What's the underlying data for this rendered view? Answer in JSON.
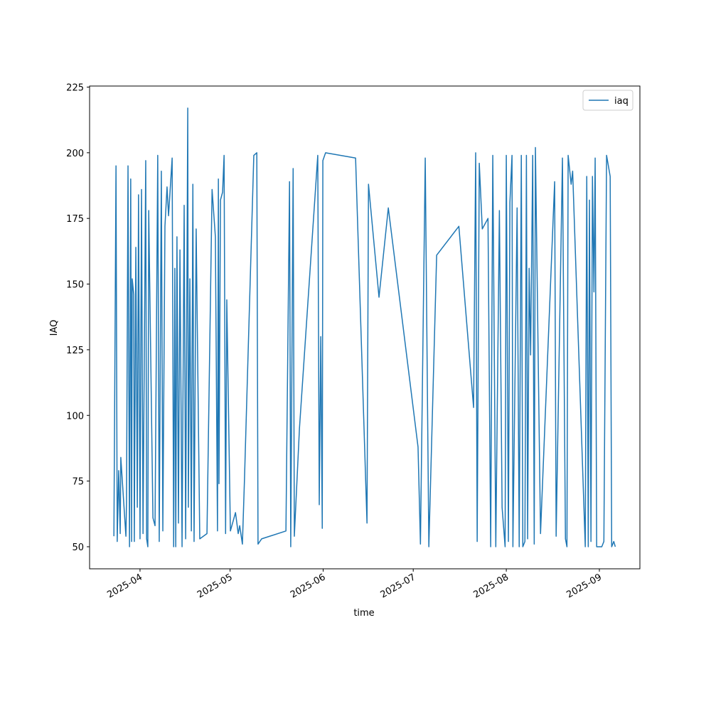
{
  "chart_data": {
    "type": "line",
    "xlabel": "time",
    "ylabel": "IAQ",
    "x": [
      20170.3,
      20171.0,
      20171.4,
      20171.9,
      20172.4,
      20172.6,
      20174.3,
      20174.5,
      20175.0,
      20175.5,
      20175.9,
      20176.2,
      20176.4,
      20176.9,
      20177.1,
      20177.6,
      20178.1,
      20178.5,
      20179.0,
      20179.5,
      20180.0,
      20180.9,
      20181.2,
      20181.6,
      20181.9,
      20183.3,
      20184.0,
      20184.9,
      20185.4,
      20186.1,
      20186.6,
      20187.3,
      20188.0,
      20188.5,
      20189.7,
      20190.2,
      20190.6,
      20190.9,
      20191.3,
      20191.8,
      20192.3,
      20193.0,
      20193.7,
      20194.2,
      20194.9,
      20195.1,
      20195.6,
      20196.1,
      20196.6,
      20197.0,
      20197.7,
      20198.9,
      20201.3,
      20203.0,
      20204.1,
      20204.8,
      20205.1,
      20205.3,
      20205.8,
      20206.5,
      20207.0,
      20207.5,
      20207.9,
      20209.1,
      20210.8,
      20211.7,
      20212.2,
      20213.1,
      20213.8,
      20216.9,
      20217.9,
      20218.3,
      20219.5,
      20227.6,
      20228.8,
      20229.2,
      20230.0,
      20230.4,
      20232.1,
      20238.2,
      20238.7,
      20239.2,
      20239.7,
      20239.9,
      20240.8,
      20250.8,
      20254.6,
      20255.1,
      20258.6,
      20261.7,
      20271.6,
      20272.4,
      20274.0,
      20275.2,
      20277.8,
      20285.2,
      20290.1,
      20290.8,
      20291.3,
      20292.0,
      20293.0,
      20294.9,
      20295.8,
      20296.5,
      20297.5,
      20298.7,
      20299.6,
      20300.6,
      20301.0,
      20301.7,
      20302.2,
      20302.9,
      20303.2,
      20304.6,
      20305.3,
      20306.0,
      20306.5,
      20307.2,
      20307.7,
      20308.1,
      20308.6,
      20309.1,
      20309.8,
      20310.3,
      20310.7,
      20312.4,
      20317.1,
      20317.6,
      20319.7,
      20320.7,
      20321.2,
      20321.6,
      20322.6,
      20323.1,
      20327.3,
      20327.8,
      20328.3,
      20328.7,
      20329.2,
      20329.7,
      20330.2,
      20330.6,
      20331.1,
      20332.8,
      20333.5,
      20334.4,
      20335.6,
      20336.1,
      20336.8,
      20337.3
    ],
    "series": [
      {
        "name": "iaq",
        "color": "#1f77b4",
        "values": [
          54,
          195,
          52,
          79,
          55,
          84,
          54,
          67,
          195,
          50,
          190,
          52,
          152,
          146,
          52,
          164,
          65,
          184,
          53,
          186,
          55,
          197,
          53,
          50,
          178,
          61,
          58,
          199,
          52,
          193,
          56,
          172,
          187,
          176,
          198,
          50,
          156,
          50,
          168,
          59,
          163,
          50,
          180,
          53,
          217,
          65,
          152,
          56,
          188,
          52,
          171,
          53,
          55,
          186,
          168,
          56,
          190,
          74,
          182,
          185,
          199,
          55,
          144,
          56,
          63,
          55,
          58,
          51,
          76,
          199,
          200,
          51,
          53,
          56,
          189,
          50,
          194,
          54,
          95,
          199,
          66,
          130,
          57,
          197,
          200,
          198,
          59,
          188,
          145,
          179,
          88,
          51,
          198,
          50,
          161,
          172,
          103,
          200,
          52,
          196,
          171,
          175,
          50,
          199,
          50,
          178,
          65,
          50,
          199,
          52,
          181,
          199,
          50,
          179,
          50,
          199,
          50,
          52,
          199,
          53,
          156,
          123,
          199,
          51,
          202,
          55,
          189,
          54,
          198,
          53,
          50,
          199,
          188,
          193,
          50,
          191,
          50,
          182,
          52,
          191,
          147,
          198,
          50,
          50,
          52,
          199,
          191,
          50,
          52,
          50
        ]
      }
    ],
    "xlim": [
      20162.2,
      20345.5
    ],
    "xticks": [
      {
        "value": 20179,
        "label": "2025-04"
      },
      {
        "value": 20209,
        "label": "2025-05"
      },
      {
        "value": 20240,
        "label": "2025-06"
      },
      {
        "value": 20270,
        "label": "2025-07"
      },
      {
        "value": 20301,
        "label": "2025-08"
      },
      {
        "value": 20332,
        "label": "2025-09"
      }
    ],
    "ylim": [
      41.6,
      225.4
    ],
    "yticks": [
      50,
      75,
      100,
      125,
      150,
      175,
      200,
      225
    ],
    "grid": false,
    "legend": "upper right"
  }
}
